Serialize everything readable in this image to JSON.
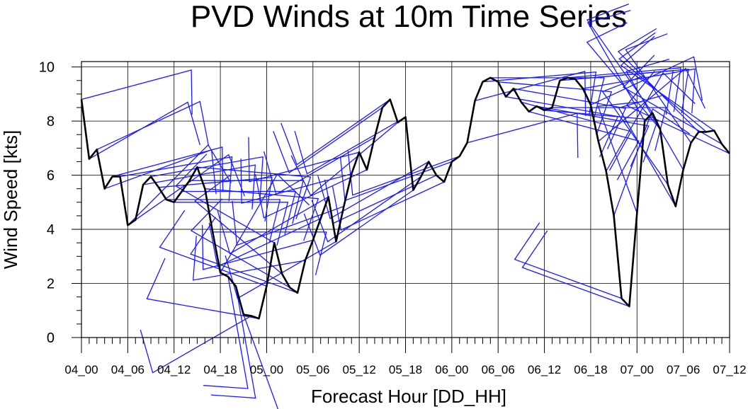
{
  "chart_data": {
    "type": "line",
    "title": "PVD Winds at 10m Time Series",
    "xlabel": "Forecast Hour [DD_HH]",
    "ylabel": "Wind Speed [kts]",
    "ylim": [
      0,
      10.2
    ],
    "yticks": [
      0,
      2,
      4,
      6,
      8,
      10
    ],
    "x_tick_labels": [
      "04_00",
      "04_06",
      "04_12",
      "04_18",
      "05_00",
      "05_06",
      "05_12",
      "05_18",
      "06_00",
      "06_06",
      "06_12",
      "06_18",
      "07_00",
      "07_06",
      "07_12"
    ],
    "hours_per_label": 6,
    "grid": true,
    "colors": {
      "line": "#000000",
      "barbs": "#1a1aff",
      "grid": "#000000"
    },
    "series": [
      {
        "values": [
          8.8,
          6.6,
          6.95,
          5.5,
          5.95,
          5.95,
          4.15,
          4.35,
          5.65,
          5.95,
          5.55,
          5.1,
          5.0,
          5.4,
          5.8,
          6.3,
          5.5,
          3.9,
          2.4,
          2.25,
          1.9,
          0.85,
          0.8,
          0.7,
          1.9,
          3.5,
          2.35,
          1.85,
          1.65,
          2.85,
          3.6,
          4.4,
          5.2,
          3.55,
          4.85,
          6.05,
          6.85,
          6.2,
          7.4,
          8.5,
          8.8,
          7.95,
          8.15,
          5.45,
          5.95,
          6.5,
          6.0,
          5.75,
          6.5,
          6.7,
          7.2,
          8.75,
          9.45,
          9.6,
          9.45,
          8.9,
          9.2,
          8.7,
          8.35,
          8.55,
          8.4,
          8.5,
          9.5,
          9.6,
          9.55,
          9.2,
          8.6,
          7.25,
          6.15,
          4.5,
          1.45,
          1.15,
          4.6,
          8.0,
          8.3,
          7.7,
          5.65,
          4.85,
          6.2,
          7.2,
          7.6,
          7.6,
          7.65,
          7.15,
          6.8
        ]
      }
    ],
    "wind_barbs": {
      "pole_length_kts": 4.2,
      "directions_deg": [
        75,
        60,
        65,
        70,
        75,
        80,
        45,
        55,
        80,
        80,
        85,
        90,
        90,
        90,
        90,
        95,
        95,
        90,
        30,
        170,
        170,
        160,
        240,
        280,
        290,
        300,
        310,
        300,
        290,
        260,
        255,
        245,
        240,
        240,
        250,
        255,
        255,
        245,
        240,
        235,
        235,
        230,
        240,
        235,
        235,
        240,
        245,
        245,
        250,
        250,
        75,
        75,
        85,
        90,
        95,
        100,
        100,
        105,
        105,
        100,
        95,
        90,
        85,
        85,
        85,
        80,
        65,
        50,
        30,
        20,
        290,
        290,
        340,
        330,
        325,
        320,
        325,
        330,
        330,
        325,
        315,
        310,
        305,
        300,
        295
      ]
    }
  }
}
